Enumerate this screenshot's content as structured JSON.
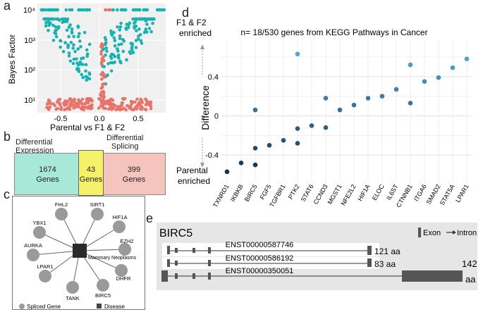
{
  "panels": {
    "a": "a",
    "b": "b",
    "c": "c",
    "d": "d",
    "e": "e"
  },
  "panel_a": {
    "ylabel": "Bayes Factor",
    "xlabel": "Parental vs F1 & F2",
    "yticks": [
      "10⁴",
      "10³",
      "10²",
      "10¹"
    ],
    "xticks": [
      "-0.5",
      "0.0",
      "0.5"
    ],
    "colors": {
      "teal": "#17b3b0",
      "salmon": "#e8736a",
      "grid": "#d8d8d8",
      "bg": "#f0f0f0"
    }
  },
  "panel_b": {
    "left_title": "Differential\nExpression",
    "right_title": "Differential\nSplicing",
    "left_count": "1674",
    "left_unit": "Genes",
    "mid_count": "43",
    "mid_unit": "Genes",
    "right_count": "399",
    "right_unit": "Genes",
    "colors": {
      "left": "#a8e8d8",
      "mid": "#f5f26a",
      "right": "#f5c4bc"
    }
  },
  "panel_c": {
    "disease_label": "Mammary Neoplasms",
    "genes": [
      "FHL2",
      "SIRT1",
      "HIF1A",
      "EZH2",
      "DHFR",
      "BIRC5",
      "TANK",
      "LPAR1",
      "AURKA",
      "YBX1"
    ],
    "legend_gene": "Spliced Gene",
    "legend_disease": "Disease"
  },
  "panel_d": {
    "title": "n= 18/530 genes from KEGG Pathways in Cancer",
    "ylabel": "Difference",
    "top_annotation": "F1 & F2\nenriched",
    "bottom_annotation": "Parental\nenriched",
    "yticks": [
      "0.4",
      "0",
      "-0.4"
    ]
  },
  "chart_data": {
    "type": "scatter",
    "title": "n= 18/530 genes from KEGG Pathways in Cancer",
    "ylabel": "Difference",
    "ylim": [
      -0.65,
      0.75
    ],
    "categories": [
      "TXNRD1",
      "IKBKB",
      "BIRC5",
      "FGF5",
      "TGFBR1",
      "PTK2",
      "STAT6",
      "CCND3",
      "MGST1",
      "NFE2L2",
      "HIF1A",
      "ELOC",
      "IL6ST",
      "CTNNB1",
      "ITGA6",
      "SMAD2",
      "STAT5A",
      "LPAR1"
    ],
    "points": [
      {
        "gene": "TXNRD1",
        "y": -0.57
      },
      {
        "gene": "IKBKB",
        "y": -0.48
      },
      {
        "gene": "BIRC5",
        "y": -0.5
      },
      {
        "gene": "BIRC5",
        "y": -0.33
      },
      {
        "gene": "BIRC5",
        "y": 0.06
      },
      {
        "gene": "FGF5",
        "y": -0.3
      },
      {
        "gene": "TGFBR1",
        "y": -0.25
      },
      {
        "gene": "PTK2",
        "y": -0.28
      },
      {
        "gene": "PTK2",
        "y": -0.13
      },
      {
        "gene": "PTK2",
        "y": 0.63
      },
      {
        "gene": "STAT6",
        "y": -0.1
      },
      {
        "gene": "CCND3",
        "y": -0.12
      },
      {
        "gene": "CCND3",
        "y": 0.18
      },
      {
        "gene": "MGST1",
        "y": 0.06
      },
      {
        "gene": "NFE2L2",
        "y": 0.11
      },
      {
        "gene": "HIF1A",
        "y": 0.18
      },
      {
        "gene": "ELOC",
        "y": 0.2
      },
      {
        "gene": "IL6ST",
        "y": 0.27
      },
      {
        "gene": "CTNNB1",
        "y": 0.13
      },
      {
        "gene": "CTNNB1",
        "y": 0.52
      },
      {
        "gene": "ITGA6",
        "y": 0.35
      },
      {
        "gene": "SMAD2",
        "y": 0.39
      },
      {
        "gene": "STAT5A",
        "y": 0.49
      },
      {
        "gene": "LPAR1",
        "y": 0.58
      }
    ],
    "grid": true
  },
  "panel_e": {
    "gene": "BIRC5",
    "legend_exon": "Exon",
    "legend_intron": "Intron",
    "transcripts": [
      {
        "id": "ENST00000587746",
        "length": "121 aa"
      },
      {
        "id": "ENST00000586192",
        "length": "83 aa"
      },
      {
        "id": "ENST00000350051",
        "length_num": "142",
        "length_unit": "aa"
      }
    ]
  }
}
